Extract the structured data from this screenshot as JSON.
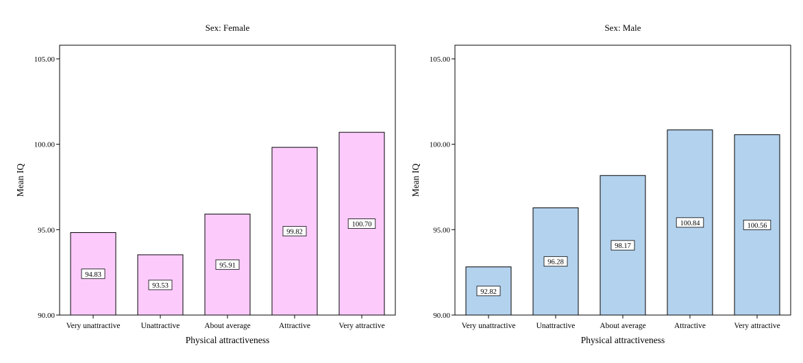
{
  "chart_data": [
    {
      "type": "bar",
      "title": "Sex:  Female",
      "xlabel": "Physical attractiveness",
      "ylabel": "Mean IQ",
      "ylim": [
        90,
        105.8
      ],
      "yticks": [
        90,
        95,
        100,
        105
      ],
      "ytick_labels": [
        "90.00",
        "95.00",
        "100.00",
        "105.00"
      ],
      "categories": [
        "Very unattractive",
        "Unattractive",
        "About average",
        "Attractive",
        "Very attractive"
      ],
      "values": [
        94.83,
        93.53,
        95.91,
        99.82,
        100.7
      ],
      "value_labels": [
        "94.83",
        "93.53",
        "95.91",
        "99.82",
        "100.70"
      ],
      "bar_color": "#fccbfc",
      "grid": false
    },
    {
      "type": "bar",
      "title": "Sex:  Male",
      "xlabel": "Physical attractiveness",
      "ylabel": "Mean IQ",
      "ylim": [
        90,
        105.8
      ],
      "yticks": [
        90,
        95,
        100,
        105
      ],
      "ytick_labels": [
        "90.00",
        "95.00",
        "100.00",
        "105.00"
      ],
      "categories": [
        "Very unattractive",
        "Unattractive",
        "About average",
        "Attractive",
        "Very attractive"
      ],
      "values": [
        92.82,
        96.28,
        98.17,
        100.84,
        100.56
      ],
      "value_labels": [
        "92.82",
        "96.28",
        "98.17",
        "100.84",
        "100.56"
      ],
      "bar_color": "#b3d2ee",
      "grid": false
    }
  ]
}
